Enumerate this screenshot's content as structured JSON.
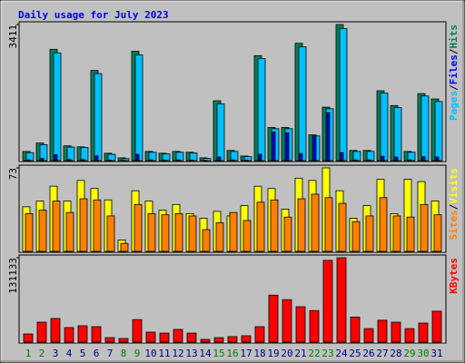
{
  "chart_data": [
    {
      "type": "bar",
      "title": "Daily usage for July 2023",
      "legend_separator": "/",
      "categories": [
        "1",
        "2",
        "3",
        "4",
        "5",
        "6",
        "7",
        "8",
        "9",
        "10",
        "11",
        "12",
        "13",
        "14",
        "15",
        "16",
        "17",
        "18",
        "19",
        "20",
        "21",
        "22",
        "23",
        "24",
        "25",
        "26",
        "27",
        "28",
        "29",
        "30",
        "31"
      ],
      "ylim": [
        0,
        3411
      ],
      "yticks": [
        3411
      ],
      "series": [
        {
          "name": "Hits",
          "color": "#00805c",
          "values": [
            230,
            440,
            2790,
            370,
            345,
            2260,
            185,
            70,
            2740,
            230,
            185,
            230,
            210,
            70,
            1500,
            255,
            115,
            2630,
            830,
            830,
            2940,
            645,
            1340,
            3411,
            255,
            255,
            1750,
            1380,
            230,
            1680,
            1545
          ]
        },
        {
          "name": "Files",
          "color": "#0000ff",
          "values": [
            20,
            60,
            150,
            30,
            30,
            120,
            15,
            5,
            160,
            20,
            15,
            20,
            15,
            5,
            90,
            20,
            10,
            160,
            720,
            700,
            180,
            600,
            1200,
            200,
            20,
            20,
            110,
            90,
            20,
            100,
            90
          ]
        },
        {
          "name": "Pages",
          "color": "#00c0ff",
          "values": [
            200,
            400,
            2700,
            340,
            330,
            2180,
            160,
            50,
            2650,
            210,
            170,
            210,
            190,
            55,
            1420,
            230,
            100,
            2560,
            800,
            800,
            2850,
            620,
            1300,
            3310,
            230,
            230,
            1690,
            1330,
            210,
            1620,
            1480
          ]
        }
      ]
    },
    {
      "type": "bar",
      "legend_separator": "/",
      "categories": [
        "1",
        "2",
        "3",
        "4",
        "5",
        "6",
        "7",
        "8",
        "9",
        "10",
        "11",
        "12",
        "13",
        "14",
        "15",
        "16",
        "17",
        "18",
        "19",
        "20",
        "21",
        "22",
        "23",
        "24",
        "25",
        "26",
        "27",
        "28",
        "29",
        "30",
        "31"
      ],
      "ylim": [
        0,
        73
      ],
      "yticks": [
        73
      ],
      "series": [
        {
          "name": "Visits",
          "color": "#ffff00",
          "values": [
            39,
            44,
            57,
            44,
            62,
            55,
            45,
            10,
            53,
            44,
            36,
            41,
            33,
            29,
            35,
            31,
            40,
            57,
            55,
            37,
            64,
            62,
            73,
            53,
            29,
            40,
            63,
            33,
            63,
            61,
            44
          ]
        },
        {
          "name": "Sites",
          "color": "#ff8000",
          "values": [
            33,
            36,
            44,
            34,
            46,
            45,
            31,
            7,
            41,
            33,
            32,
            33,
            31,
            19,
            25,
            34,
            27,
            43,
            45,
            30,
            46,
            50,
            47,
            42,
            26,
            31,
            47,
            31,
            30,
            41,
            32
          ]
        }
      ]
    },
    {
      "type": "bar",
      "categories": [
        "1",
        "2",
        "3",
        "4",
        "5",
        "6",
        "7",
        "8",
        "9",
        "10",
        "11",
        "12",
        "13",
        "14",
        "15",
        "16",
        "17",
        "18",
        "19",
        "20",
        "21",
        "22",
        "23",
        "24",
        "25",
        "26",
        "27",
        "28",
        "29",
        "30",
        "31"
      ],
      "category_colors": [
        "#008000",
        "#008000",
        "#000080",
        "#000080",
        "#000080",
        "#000080",
        "#000080",
        "#008000",
        "#008000",
        "#000080",
        "#000080",
        "#000080",
        "#000080",
        "#000080",
        "#008000",
        "#008000",
        "#000080",
        "#000080",
        "#000080",
        "#000080",
        "#000080",
        "#008000",
        "#008000",
        "#000080",
        "#000080",
        "#000080",
        "#000080",
        "#000080",
        "#008000",
        "#008000",
        "#000080"
      ],
      "ylim": [
        0,
        131133
      ],
      "yticks": [
        131133
      ],
      "series": [
        {
          "name": "KBytes",
          "color": "#ff0000",
          "values": [
            12700,
            31000,
            36700,
            22600,
            25400,
            24000,
            7000,
            5600,
            35000,
            15500,
            14000,
            19700,
            14000,
            4200,
            7000,
            8500,
            9900,
            24000,
            73000,
            66000,
            55000,
            49000,
            127000,
            131133,
            39000,
            21000,
            34000,
            31000,
            21000,
            29600,
            48000
          ]
        }
      ]
    }
  ]
}
